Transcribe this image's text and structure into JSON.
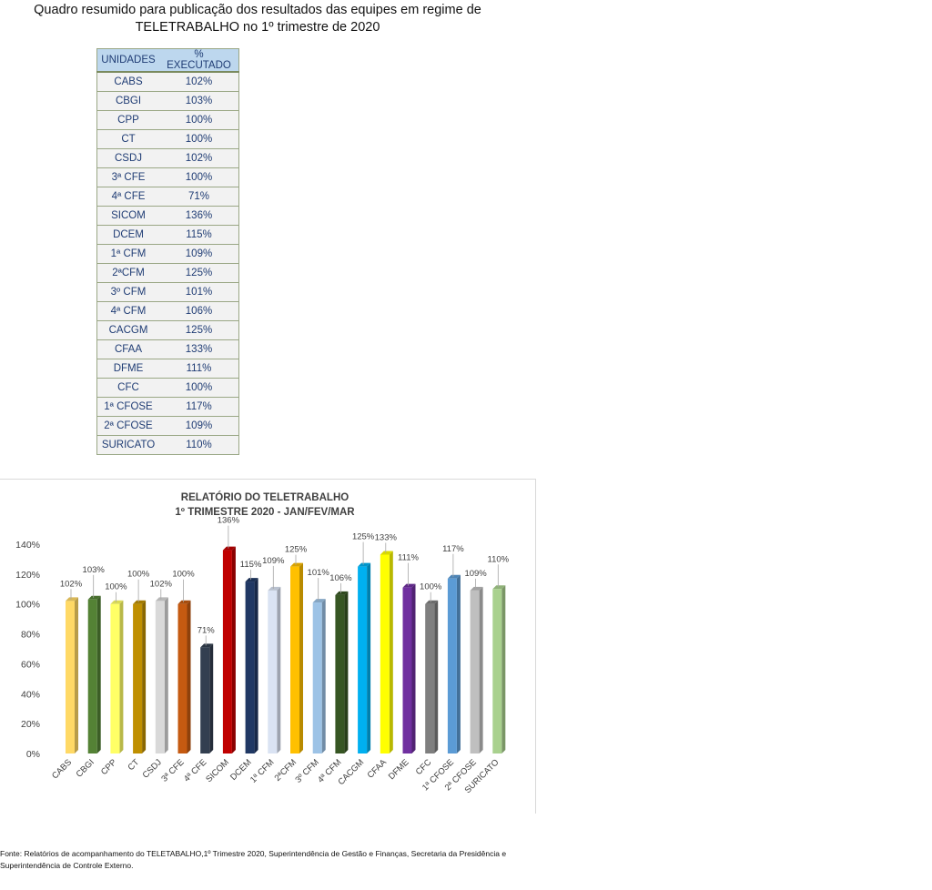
{
  "page_title": {
    "line1": "Quadro resumido para publicação dos resultados das equipes em regime de",
    "line2": "TELETRABALHO no 1º trimestre de 2020"
  },
  "table": {
    "headers": [
      "UNIDADES",
      "% EXECUTADO"
    ],
    "rows": [
      {
        "unit": "CABS",
        "pct": "102%"
      },
      {
        "unit": "CBGI",
        "pct": "103%"
      },
      {
        "unit": "CPP",
        "pct": "100%"
      },
      {
        "unit": "CT",
        "pct": "100%"
      },
      {
        "unit": "CSDJ",
        "pct": "102%"
      },
      {
        "unit": "3ª CFE",
        "pct": "100%"
      },
      {
        "unit": "4ª CFE",
        "pct": "71%"
      },
      {
        "unit": "SICOM",
        "pct": "136%"
      },
      {
        "unit": "DCEM",
        "pct": "115%"
      },
      {
        "unit": "1ª CFM",
        "pct": "109%"
      },
      {
        "unit": "2ªCFM",
        "pct": "125%"
      },
      {
        "unit": "3º CFM",
        "pct": "101%"
      },
      {
        "unit": "4ª CFM",
        "pct": "106%"
      },
      {
        "unit": "CACGM",
        "pct": "125%"
      },
      {
        "unit": "CFAA",
        "pct": "133%"
      },
      {
        "unit": "DFME",
        "pct": "111%"
      },
      {
        "unit": "CFC",
        "pct": "100%"
      },
      {
        "unit": "1ª CFOSE",
        "pct": "117%"
      },
      {
        "unit": "2ª CFOSE",
        "pct": "109%"
      },
      {
        "unit": "SURICATO",
        "pct": "110%"
      }
    ]
  },
  "chart_data": {
    "type": "bar",
    "title": "RELATÓRIO DO TELETRABALHO",
    "subtitle": "1º TRIMESTRE 2020 - JAN/FEV/MAR",
    "xlabel": "",
    "ylabel": "",
    "ylim": [
      0,
      140
    ],
    "yticks": [
      "0%",
      "20%",
      "40%",
      "60%",
      "80%",
      "100%",
      "120%",
      "140%"
    ],
    "grid": false,
    "categories": [
      "CABS",
      "CBGI",
      "CPP",
      "CT",
      "CSDJ",
      "3ª CFE",
      "4ª CFE",
      "SICOM",
      "DCEM",
      "1ª CFM",
      "2ªCFM",
      "3º CFM",
      "4ª CFM",
      "CACGM",
      "CFAA",
      "DFME",
      "CFC",
      "1ª CFOSE",
      "2ª CFOSE",
      "SURICATO"
    ],
    "values": [
      102,
      103,
      100,
      100,
      102,
      100,
      71,
      136,
      115,
      109,
      125,
      101,
      106,
      125,
      133,
      111,
      100,
      117,
      109,
      110
    ],
    "data_labels": [
      "102%",
      "103%",
      "100%",
      "100%",
      "102%",
      "100%",
      "71%",
      "136%",
      "115%",
      "109%",
      "125%",
      "101%",
      "106%",
      "125%",
      "133%",
      "111%",
      "100%",
      "117%",
      "109%",
      "110%"
    ],
    "colors": [
      "#ffd966",
      "#548235",
      "#ffff66",
      "#bf8f00",
      "#d9d9d9",
      "#c55a11",
      "#333f50",
      "#c00000",
      "#203864",
      "#dae3f3",
      "#ffc000",
      "#9dc3e6",
      "#375623",
      "#00b0f0",
      "#ffff00",
      "#7030a0",
      "#7f7f7f",
      "#5b9bd5",
      "#bfbfbf",
      "#a9d18e"
    ]
  },
  "source_note": "Fonte: Relatórios de acompanhamento do TELETABALHO,1º Trimestre 2020, Superintendência de Gestão e Finanças, Secretaria da Presidência e Superintendência de Controle Externo."
}
